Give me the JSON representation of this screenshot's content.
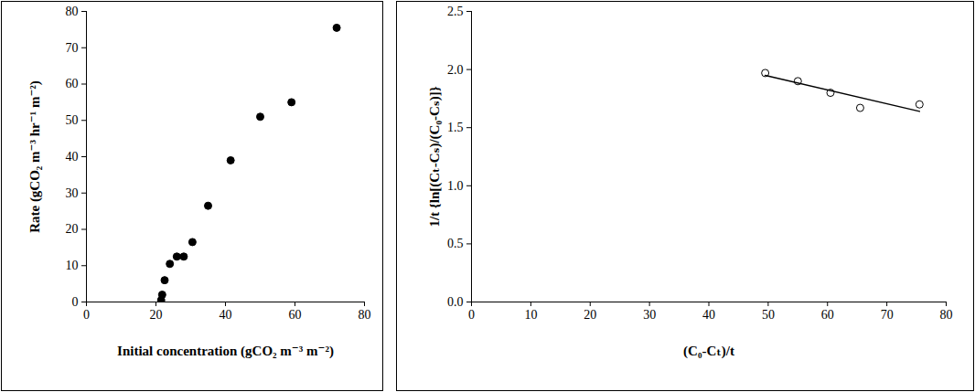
{
  "chart_data": [
    {
      "type": "scatter",
      "x_label": "Initial concentration (gCO₂ m⁻³ m⁻²)",
      "y_label": "Rate (gCO₂ m⁻³ hr⁻¹ m⁻²)",
      "x": [
        21.5,
        21.8,
        22.5,
        24,
        26,
        28,
        30.5,
        35,
        41.5,
        50,
        59,
        72
      ],
      "values": [
        0.5,
        2,
        6,
        10.5,
        12.5,
        12.5,
        16.5,
        26.5,
        39,
        51,
        55,
        75.5
      ],
      "color": "#000000",
      "marker": "filled circle",
      "xlim": [
        0,
        80
      ],
      "xticks": [
        0,
        20,
        40,
        60,
        80
      ],
      "ylim": [
        0,
        80
      ],
      "yticks": [
        0,
        10,
        20,
        30,
        40,
        50,
        60,
        70,
        80
      ],
      "grid": false
    },
    {
      "type": "scatter",
      "x_label": "(C₀-Cₜ)/t",
      "y_label": "1/t {ln[(Cₜ-Cₛ)/(C₀-Cₛ)]}",
      "series": [
        {
          "type": "scatter",
          "marker": "open circle",
          "color": "#000000",
          "x": [
            49.5,
            55,
            60.5,
            65.5,
            75.5
          ],
          "values": [
            1.97,
            1.9,
            1.8,
            1.67,
            1.7
          ]
        },
        {
          "type": "line",
          "line_style": "solid",
          "color": "#000000",
          "x": [
            49.5,
            75.5
          ],
          "values": [
            1.95,
            1.64
          ]
        }
      ],
      "xlim": [
        0,
        80
      ],
      "xticks": [
        0,
        10,
        20,
        30,
        40,
        50,
        60,
        70,
        80
      ],
      "ylim": [
        0,
        2.5
      ],
      "yticks": [
        {
          "value": 0,
          "label": "0.0"
        },
        0.5,
        {
          "value": 1,
          "label": "1.0"
        },
        1.5,
        {
          "value": 2,
          "label": "2.0"
        },
        2.5
      ],
      "grid": false
    }
  ]
}
